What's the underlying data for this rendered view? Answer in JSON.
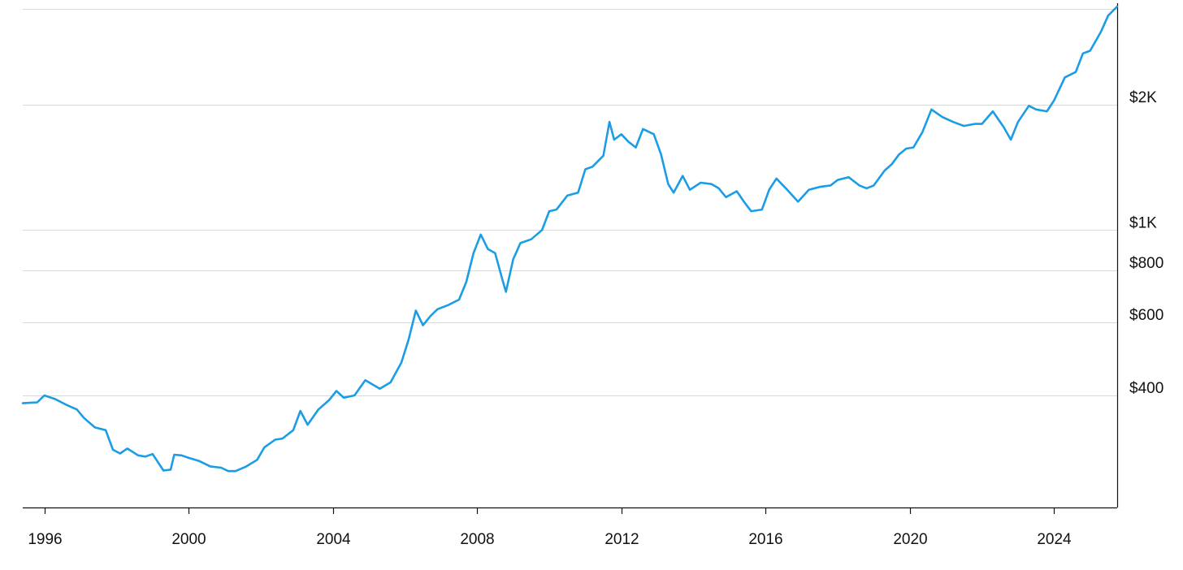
{
  "chart_data": {
    "type": "line",
    "title": "",
    "xlabel": "",
    "ylabel": "",
    "y_scale": "log",
    "ylim": [
      215,
      3450
    ],
    "xlim": [
      1995.4,
      2025.75
    ],
    "grid": "horizontal",
    "line_color": "#1a9de6",
    "grid_color": "#d9d9d9",
    "axis_color": "#111111",
    "y_axis_position": "right",
    "x_ticks": [
      1996,
      2000,
      2004,
      2008,
      2012,
      2016,
      2020,
      2024
    ],
    "x_tick_labels": [
      "1996",
      "2000",
      "2004",
      "2008",
      "2012",
      "2016",
      "2020",
      "2024"
    ],
    "y_ticks": [
      400,
      600,
      800,
      1000,
      2000
    ],
    "y_tick_labels": [
      "$400",
      "$600",
      "$800",
      "$1K",
      "$2K"
    ],
    "y_grid_extra": [
      3400
    ],
    "series": [
      {
        "name": "",
        "x": [
          1995.4,
          1995.8,
          1996.0,
          1996.3,
          1996.6,
          1996.9,
          1997.1,
          1997.4,
          1997.7,
          1997.9,
          1998.1,
          1998.3,
          1998.6,
          1998.8,
          1999.0,
          1999.3,
          1999.5,
          1999.6,
          1999.8,
          2000.0,
          2000.3,
          2000.6,
          2000.9,
          2001.1,
          2001.3,
          2001.6,
          2001.9,
          2002.1,
          2002.4,
          2002.6,
          2002.9,
          2003.1,
          2003.3,
          2003.6,
          2003.9,
          2004.1,
          2004.3,
          2004.6,
          2004.9,
          2005.1,
          2005.3,
          2005.6,
          2005.9,
          2006.1,
          2006.3,
          2006.5,
          2006.7,
          2006.9,
          2007.2,
          2007.5,
          2007.7,
          2007.9,
          2008.1,
          2008.3,
          2008.5,
          2008.7,
          2008.8,
          2009.0,
          2009.2,
          2009.5,
          2009.8,
          2010.0,
          2010.2,
          2010.5,
          2010.8,
          2011.0,
          2011.2,
          2011.5,
          2011.67,
          2011.8,
          2012.0,
          2012.2,
          2012.4,
          2012.6,
          2012.9,
          2013.1,
          2013.3,
          2013.45,
          2013.7,
          2013.9,
          2014.2,
          2014.5,
          2014.7,
          2014.9,
          2015.2,
          2015.4,
          2015.6,
          2015.9,
          2016.1,
          2016.3,
          2016.6,
          2016.9,
          2017.2,
          2017.5,
          2017.8,
          2018.0,
          2018.3,
          2018.6,
          2018.8,
          2019.0,
          2019.3,
          2019.5,
          2019.7,
          2019.9,
          2020.1,
          2020.35,
          2020.6,
          2020.9,
          2021.2,
          2021.5,
          2021.8,
          2022.0,
          2022.3,
          2022.6,
          2022.8,
          2023.0,
          2023.3,
          2023.5,
          2023.8,
          2024.0,
          2024.3,
          2024.6,
          2024.8,
          2025.0,
          2025.3,
          2025.5,
          2025.75
        ],
        "values": [
          383,
          385,
          400,
          392,
          380,
          370,
          353,
          335,
          330,
          296,
          290,
          298,
          287,
          285,
          289,
          264,
          265,
          288,
          287,
          283,
          278,
          270,
          268,
          263,
          263,
          270,
          280,
          300,
          313,
          315,
          330,
          367,
          340,
          370,
          390,
          410,
          395,
          400,
          435,
          425,
          415,
          430,
          480,
          545,
          640,
          590,
          620,
          645,
          660,
          680,
          750,
          880,
          975,
          900,
          880,
          760,
          710,
          850,
          930,
          950,
          1000,
          1110,
          1120,
          1210,
          1230,
          1400,
          1420,
          1510,
          1820,
          1650,
          1700,
          1630,
          1580,
          1750,
          1700,
          1520,
          1290,
          1230,
          1350,
          1250,
          1300,
          1290,
          1260,
          1200,
          1240,
          1170,
          1110,
          1120,
          1250,
          1330,
          1250,
          1170,
          1250,
          1270,
          1280,
          1320,
          1340,
          1280,
          1260,
          1280,
          1390,
          1440,
          1520,
          1570,
          1580,
          1720,
          1950,
          1870,
          1820,
          1780,
          1800,
          1800,
          1930,
          1770,
          1650,
          1820,
          1990,
          1950,
          1930,
          2050,
          2330,
          2400,
          2660,
          2700,
          3000,
          3280,
          3450
        ]
      }
    ]
  }
}
